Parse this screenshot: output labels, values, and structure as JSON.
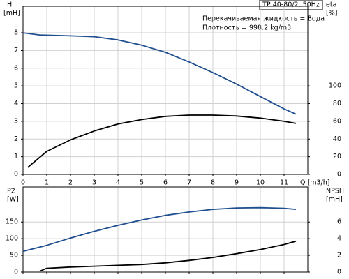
{
  "chart_data": [
    {
      "type": "line",
      "title": "TP 40-80/2, 50Hz",
      "annotations": [
        "Перекачиваемая жидкость = Вода",
        "Плотность = 998.2 kg/m3"
      ],
      "y_label": "H",
      "y_unit": "[mH]",
      "y2_label": "eta",
      "y2_unit": "[%]",
      "x_label": "Q [m3/h]",
      "xlim": [
        0,
        12
      ],
      "xticks": [
        0,
        1,
        2,
        3,
        4,
        5,
        6,
        7,
        8,
        9,
        10,
        11
      ],
      "show_xtick_labels": true,
      "ylim": [
        0,
        9.5
      ],
      "yticks": [
        0,
        1,
        2,
        3,
        4,
        5,
        6,
        7,
        8
      ],
      "y2lim": [
        0,
        190
      ],
      "y2ticks": [
        0,
        20,
        40,
        60,
        80,
        100
      ],
      "grid": true,
      "series": [
        {
          "name": "H",
          "color": "#1f4f8f",
          "x": [
            0,
            0.7,
            2,
            3,
            4,
            5,
            6,
            7,
            8,
            9,
            10,
            11,
            11.5
          ],
          "values": [
            8.0,
            7.88,
            7.83,
            7.78,
            7.6,
            7.3,
            6.9,
            6.35,
            5.75,
            5.1,
            4.4,
            3.7,
            3.4
          ]
        },
        {
          "name": "eta",
          "color": "#000000",
          "axis": "y2",
          "x": [
            0.2,
            1,
            2,
            3,
            4,
            5,
            6,
            7,
            8,
            9,
            10,
            11,
            11.5
          ],
          "values": [
            8,
            26,
            39,
            49,
            57,
            62,
            65.6,
            67,
            67,
            66,
            63.6,
            60,
            57.6
          ]
        }
      ]
    },
    {
      "type": "line",
      "y_label": "P2",
      "y_unit": "[W]",
      "y2_label": "NPSH",
      "y2_unit": "[mH]",
      "xlim": [
        0,
        12
      ],
      "xticks": [
        0,
        1,
        2,
        3,
        4,
        5,
        6,
        7,
        8,
        9,
        10,
        11
      ],
      "show_xtick_labels": false,
      "ylim": [
        0,
        255
      ],
      "yticks": [
        0,
        50,
        100,
        150
      ],
      "y2lim": [
        0,
        10.2
      ],
      "y2ticks": [
        0,
        2,
        4,
        6
      ],
      "grid": true,
      "series": [
        {
          "name": "P2",
          "color": "#1f4f8f",
          "x": [
            0,
            1,
            2,
            3,
            4,
            5,
            6,
            7,
            8,
            9,
            10,
            11,
            11.5
          ],
          "values": [
            62,
            80,
            102,
            122,
            140,
            156,
            170,
            180,
            188,
            192,
            193,
            191,
            188
          ]
        },
        {
          "name": "NPSH",
          "color": "#000000",
          "axis": "y2",
          "x": [
            0.7,
            1,
            2,
            3,
            4,
            5,
            6,
            7,
            8,
            9,
            10,
            11,
            11.5
          ],
          "values": [
            0.1,
            0.45,
            0.6,
            0.7,
            0.8,
            0.9,
            1.1,
            1.4,
            1.75,
            2.2,
            2.7,
            3.3,
            3.7
          ]
        }
      ]
    }
  ]
}
